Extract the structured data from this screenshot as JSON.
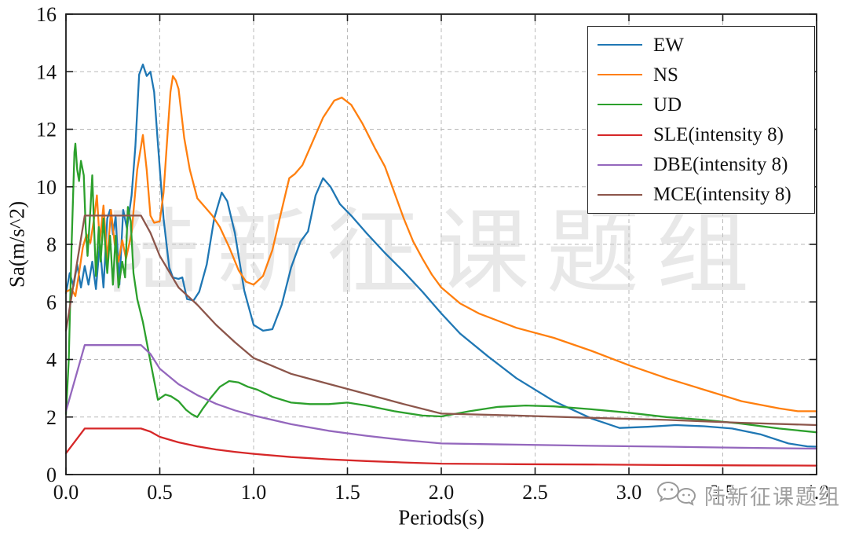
{
  "watermark_center": "陆新征课题组",
  "watermark_corner": {
    "text": "陆新征课题组",
    "icon": "wechat-bubbles-icon"
  },
  "chart_data": {
    "type": "line",
    "title": "",
    "xlabel": "Periods(s)",
    "ylabel": "Sa(m/s^2)",
    "xlim": [
      0,
      4
    ],
    "ylim": [
      0,
      16
    ],
    "xticks": [
      0,
      0.5,
      1.0,
      1.5,
      2.0,
      2.5,
      3.0,
      3.5,
      4.0
    ],
    "xtick_labels": [
      "0.0",
      "0.5",
      "1.0",
      "1.5",
      "2.0",
      "2.5",
      "3.0",
      "3.5",
      "4.0"
    ],
    "yticks": [
      0,
      2,
      4,
      6,
      8,
      10,
      12,
      14,
      16
    ],
    "ytick_labels": [
      "0",
      "2",
      "4",
      "6",
      "8",
      "10",
      "12",
      "14",
      "16"
    ],
    "grid": true,
    "grid_style": "dashed",
    "legend_position": "upper right",
    "series": [
      {
        "name": "EW",
        "color": "#1f77b4",
        "points": [
          [
            0,
            6.3
          ],
          [
            0.02,
            7.0
          ],
          [
            0.04,
            6.55
          ],
          [
            0.06,
            7.3
          ],
          [
            0.08,
            6.5
          ],
          [
            0.1,
            7.25
          ],
          [
            0.12,
            6.6
          ],
          [
            0.14,
            7.4
          ],
          [
            0.16,
            6.45
          ],
          [
            0.18,
            8.0
          ],
          [
            0.2,
            6.5
          ],
          [
            0.22,
            8.9
          ],
          [
            0.235,
            9.2
          ],
          [
            0.25,
            8.35
          ],
          [
            0.265,
            8.95
          ],
          [
            0.285,
            6.6
          ],
          [
            0.305,
            9.2
          ],
          [
            0.325,
            8.55
          ],
          [
            0.35,
            9.7
          ],
          [
            0.37,
            11.4
          ],
          [
            0.39,
            13.9
          ],
          [
            0.41,
            14.25
          ],
          [
            0.43,
            13.85
          ],
          [
            0.45,
            14.0
          ],
          [
            0.47,
            13.3
          ],
          [
            0.49,
            11.5
          ],
          [
            0.52,
            8.9
          ],
          [
            0.55,
            7.2
          ],
          [
            0.57,
            6.85
          ],
          [
            0.6,
            6.8
          ],
          [
            0.62,
            6.85
          ],
          [
            0.645,
            6.1
          ],
          [
            0.68,
            6.05
          ],
          [
            0.71,
            6.35
          ],
          [
            0.75,
            7.3
          ],
          [
            0.79,
            8.9
          ],
          [
            0.83,
            9.8
          ],
          [
            0.86,
            9.5
          ],
          [
            0.9,
            8.4
          ],
          [
            0.95,
            6.4
          ],
          [
            1.0,
            5.2
          ],
          [
            1.05,
            5.0
          ],
          [
            1.1,
            5.05
          ],
          [
            1.15,
            5.9
          ],
          [
            1.2,
            7.2
          ],
          [
            1.25,
            8.1
          ],
          [
            1.29,
            8.45
          ],
          [
            1.33,
            9.7
          ],
          [
            1.37,
            10.3
          ],
          [
            1.41,
            10.0
          ],
          [
            1.46,
            9.4
          ],
          [
            1.52,
            9.0
          ],
          [
            1.6,
            8.4
          ],
          [
            1.7,
            7.7
          ],
          [
            1.8,
            7.05
          ],
          [
            1.9,
            6.35
          ],
          [
            2.0,
            5.6
          ],
          [
            2.1,
            4.9
          ],
          [
            2.25,
            4.1
          ],
          [
            2.4,
            3.35
          ],
          [
            2.6,
            2.55
          ],
          [
            2.8,
            1.95
          ],
          [
            2.95,
            1.62
          ],
          [
            3.1,
            1.66
          ],
          [
            3.25,
            1.72
          ],
          [
            3.4,
            1.68
          ],
          [
            3.55,
            1.6
          ],
          [
            3.7,
            1.4
          ],
          [
            3.85,
            1.08
          ],
          [
            3.95,
            0.98
          ],
          [
            4.0,
            0.97
          ]
        ]
      },
      {
        "name": "NS",
        "color": "#ff7f0e",
        "points": [
          [
            0,
            6.35
          ],
          [
            0.03,
            6.45
          ],
          [
            0.05,
            6.2
          ],
          [
            0.07,
            7.0
          ],
          [
            0.09,
            7.9
          ],
          [
            0.11,
            8.35
          ],
          [
            0.13,
            8.05
          ],
          [
            0.15,
            8.9
          ],
          [
            0.165,
            9.7
          ],
          [
            0.18,
            8.1
          ],
          [
            0.2,
            9.35
          ],
          [
            0.22,
            7.45
          ],
          [
            0.24,
            9.2
          ],
          [
            0.26,
            8.0
          ],
          [
            0.28,
            7.4
          ],
          [
            0.3,
            8.15
          ],
          [
            0.32,
            7.5
          ],
          [
            0.35,
            8.4
          ],
          [
            0.38,
            10.6
          ],
          [
            0.41,
            11.8
          ],
          [
            0.43,
            10.6
          ],
          [
            0.45,
            9.0
          ],
          [
            0.47,
            8.75
          ],
          [
            0.5,
            8.8
          ],
          [
            0.52,
            9.8
          ],
          [
            0.545,
            12.2
          ],
          [
            0.557,
            13.3
          ],
          [
            0.57,
            13.85
          ],
          [
            0.585,
            13.7
          ],
          [
            0.6,
            13.4
          ],
          [
            0.63,
            11.7
          ],
          [
            0.66,
            10.6
          ],
          [
            0.7,
            9.6
          ],
          [
            0.74,
            9.3
          ],
          [
            0.78,
            9.0
          ],
          [
            0.82,
            8.6
          ],
          [
            0.87,
            7.9
          ],
          [
            0.92,
            7.1
          ],
          [
            0.96,
            6.7
          ],
          [
            1.0,
            6.6
          ],
          [
            1.05,
            6.9
          ],
          [
            1.1,
            7.8
          ],
          [
            1.15,
            9.2
          ],
          [
            1.19,
            10.3
          ],
          [
            1.22,
            10.45
          ],
          [
            1.26,
            10.75
          ],
          [
            1.31,
            11.5
          ],
          [
            1.37,
            12.4
          ],
          [
            1.43,
            13.0
          ],
          [
            1.47,
            13.1
          ],
          [
            1.52,
            12.85
          ],
          [
            1.58,
            12.2
          ],
          [
            1.65,
            11.3
          ],
          [
            1.7,
            10.7
          ],
          [
            1.75,
            9.8
          ],
          [
            1.8,
            8.9
          ],
          [
            1.85,
            8.1
          ],
          [
            1.9,
            7.5
          ],
          [
            1.95,
            6.95
          ],
          [
            2.0,
            6.5
          ],
          [
            2.1,
            5.95
          ],
          [
            2.2,
            5.6
          ],
          [
            2.4,
            5.1
          ],
          [
            2.6,
            4.75
          ],
          [
            2.8,
            4.3
          ],
          [
            3.0,
            3.8
          ],
          [
            3.2,
            3.35
          ],
          [
            3.4,
            2.95
          ],
          [
            3.6,
            2.55
          ],
          [
            3.8,
            2.3
          ],
          [
            3.9,
            2.2
          ],
          [
            4.0,
            2.2
          ]
        ]
      },
      {
        "name": "UD",
        "color": "#2ca02c",
        "points": [
          [
            0,
            2.1
          ],
          [
            0.015,
            4.0
          ],
          [
            0.03,
            8.0
          ],
          [
            0.045,
            11.2
          ],
          [
            0.05,
            11.5
          ],
          [
            0.06,
            10.6
          ],
          [
            0.07,
            10.2
          ],
          [
            0.08,
            10.9
          ],
          [
            0.095,
            10.4
          ],
          [
            0.105,
            8.6
          ],
          [
            0.115,
            7.6
          ],
          [
            0.13,
            9.2
          ],
          [
            0.14,
            10.4
          ],
          [
            0.15,
            8.6
          ],
          [
            0.16,
            6.9
          ],
          [
            0.175,
            8.6
          ],
          [
            0.185,
            7.4
          ],
          [
            0.2,
            8.9
          ],
          [
            0.21,
            7.9
          ],
          [
            0.22,
            7.0
          ],
          [
            0.235,
            8.3
          ],
          [
            0.25,
            6.6
          ],
          [
            0.265,
            8.3
          ],
          [
            0.28,
            6.5
          ],
          [
            0.3,
            7.4
          ],
          [
            0.315,
            6.85
          ],
          [
            0.33,
            9.3
          ],
          [
            0.345,
            8.8
          ],
          [
            0.36,
            7.0
          ],
          [
            0.38,
            6.1
          ],
          [
            0.41,
            5.3
          ],
          [
            0.46,
            3.6
          ],
          [
            0.49,
            2.6
          ],
          [
            0.53,
            2.78
          ],
          [
            0.56,
            2.72
          ],
          [
            0.6,
            2.55
          ],
          [
            0.64,
            2.25
          ],
          [
            0.67,
            2.1
          ],
          [
            0.7,
            2.0
          ],
          [
            0.73,
            2.3
          ],
          [
            0.77,
            2.65
          ],
          [
            0.82,
            3.05
          ],
          [
            0.87,
            3.25
          ],
          [
            0.92,
            3.2
          ],
          [
            0.97,
            3.05
          ],
          [
            1.02,
            2.95
          ],
          [
            1.1,
            2.7
          ],
          [
            1.2,
            2.5
          ],
          [
            1.3,
            2.45
          ],
          [
            1.4,
            2.45
          ],
          [
            1.5,
            2.5
          ],
          [
            1.6,
            2.4
          ],
          [
            1.75,
            2.2
          ],
          [
            1.9,
            2.05
          ],
          [
            2.0,
            2.02
          ],
          [
            2.15,
            2.2
          ],
          [
            2.3,
            2.35
          ],
          [
            2.45,
            2.4
          ],
          [
            2.6,
            2.37
          ],
          [
            2.8,
            2.27
          ],
          [
            3.0,
            2.15
          ],
          [
            3.2,
            2.0
          ],
          [
            3.4,
            1.9
          ],
          [
            3.6,
            1.77
          ],
          [
            3.8,
            1.6
          ],
          [
            4.0,
            1.47
          ]
        ]
      },
      {
        "name": "SLE(intensity 8)",
        "color": "#d62728",
        "points": [
          [
            0,
            0.74
          ],
          [
            0.1,
            1.6
          ],
          [
            0.4,
            1.6
          ],
          [
            0.45,
            1.49
          ],
          [
            0.5,
            1.31
          ],
          [
            0.6,
            1.12
          ],
          [
            0.7,
            0.98
          ],
          [
            0.8,
            0.87
          ],
          [
            0.9,
            0.79
          ],
          [
            1.0,
            0.72
          ],
          [
            1.2,
            0.61
          ],
          [
            1.4,
            0.53
          ],
          [
            1.6,
            0.47
          ],
          [
            1.8,
            0.42
          ],
          [
            2.0,
            0.38
          ],
          [
            2.4,
            0.36
          ],
          [
            2.8,
            0.35
          ],
          [
            3.2,
            0.33
          ],
          [
            3.6,
            0.32
          ],
          [
            4.0,
            0.31
          ]
        ]
      },
      {
        "name": "DBE(intensity 8)",
        "color": "#9467bd",
        "points": [
          [
            0,
            2.2
          ],
          [
            0.1,
            4.5
          ],
          [
            0.4,
            4.5
          ],
          [
            0.45,
            4.19
          ],
          [
            0.5,
            3.68
          ],
          [
            0.6,
            3.14
          ],
          [
            0.7,
            2.76
          ],
          [
            0.8,
            2.46
          ],
          [
            0.9,
            2.23
          ],
          [
            1.0,
            2.05
          ],
          [
            1.2,
            1.75
          ],
          [
            1.4,
            1.52
          ],
          [
            1.6,
            1.35
          ],
          [
            1.8,
            1.2
          ],
          [
            2.0,
            1.08
          ],
          [
            2.4,
            1.04
          ],
          [
            2.8,
            1.0
          ],
          [
            3.2,
            0.97
          ],
          [
            3.6,
            0.93
          ],
          [
            4.0,
            0.9
          ]
        ]
      },
      {
        "name": "MCE(intensity 8)",
        "color": "#8c564b",
        "points": [
          [
            0,
            5.0
          ],
          [
            0.1,
            9.0
          ],
          [
            0.4,
            9.0
          ],
          [
            0.45,
            8.4
          ],
          [
            0.5,
            7.6
          ],
          [
            0.6,
            6.5
          ],
          [
            0.7,
            5.9
          ],
          [
            0.8,
            5.2
          ],
          [
            0.9,
            4.6
          ],
          [
            1.0,
            4.05
          ],
          [
            1.2,
            3.5
          ],
          [
            1.4,
            3.15
          ],
          [
            1.6,
            2.8
          ],
          [
            1.8,
            2.45
          ],
          [
            2.0,
            2.12
          ],
          [
            2.4,
            2.05
          ],
          [
            2.8,
            1.97
          ],
          [
            3.2,
            1.9
          ],
          [
            3.6,
            1.8
          ],
          [
            4.0,
            1.72
          ]
        ]
      }
    ]
  }
}
